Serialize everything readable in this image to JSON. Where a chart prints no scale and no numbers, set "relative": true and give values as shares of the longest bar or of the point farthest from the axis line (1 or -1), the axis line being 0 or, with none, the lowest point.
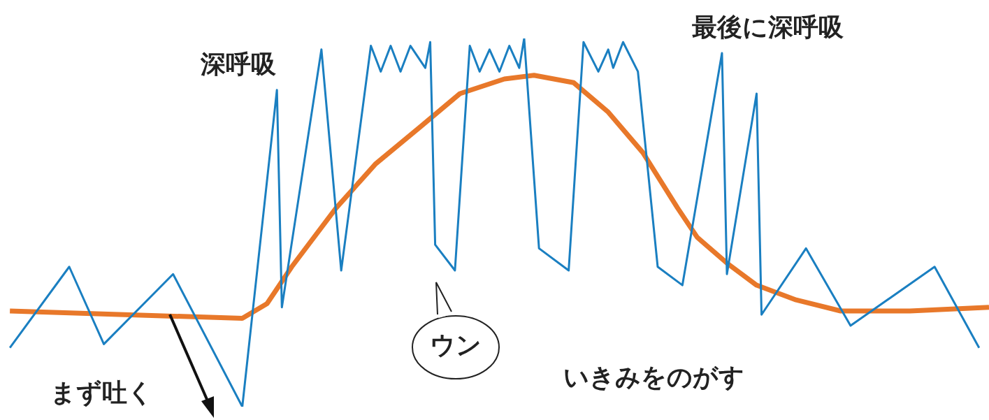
{
  "chart_data": {
    "type": "line",
    "relative": true,
    "categories": [
      null,
      null,
      null,
      null,
      null,
      null,
      null,
      null,
      null,
      null,
      null,
      null,
      null,
      null,
      null,
      null,
      null,
      null,
      null,
      null,
      null,
      null,
      null,
      null,
      null,
      null,
      null,
      null,
      null,
      null,
      null,
      null,
      null,
      null,
      null,
      null,
      null,
      null,
      null,
      null,
      null,
      null,
      null,
      null,
      null,
      null,
      null,
      null,
      null,
      null,
      null,
      null,
      null,
      null,
      null,
      null,
      null,
      null,
      null,
      null,
      null,
      null,
      null,
      null,
      null,
      null,
      null,
      null,
      null,
      null,
      null,
      null,
      null,
      null,
      null,
      null,
      null,
      null,
      null,
      null,
      null,
      null,
      null,
      null,
      null,
      null,
      null,
      null,
      null,
      null,
      null,
      null,
      null,
      null,
      null,
      null,
      null,
      null,
      null,
      null,
      null,
      null,
      null,
      null,
      null,
      null,
      null,
      null,
      null,
      null,
      null,
      null,
      null,
      null,
      null,
      null,
      null,
      null,
      null,
      null,
      null,
      null,
      null,
      null,
      null,
      null,
      null,
      null,
      null,
      null,
      null,
      null,
      null,
      null,
      null,
      null,
      null,
      null,
      null,
      null,
      null,
      null,
      null,
      null,
      null,
      null,
      null,
      null,
      null,
      null,
      null,
      null,
      null,
      null,
      null,
      null,
      null,
      null,
      null,
      null,
      null,
      null,
      null,
      null,
      null,
      null,
      null,
      null,
      null,
      null,
      null,
      null,
      null,
      null,
      null,
      null,
      null,
      null,
      null,
      null,
      null,
      null,
      null,
      null,
      null,
      null,
      null,
      null,
      null,
      null,
      null,
      null,
      null,
      null,
      null,
      null,
      null,
      null,
      null,
      null,
      null
    ],
    "series": [
      {
        "color": "#1a7fc1",
        "values": [
          null,
          null,
          0.16,
          null,
          null,
          null,
          null,
          null,
          null,
          null,
          null,
          null,
          null,
          null,
          0.38,
          null,
          null,
          null,
          null,
          null,
          null,
          0.17,
          null,
          null,
          null,
          null,
          null,
          null,
          null,
          null,
          null,
          null,
          null,
          null,
          null,
          0.36,
          null,
          null,
          null,
          null,
          null,
          null,
          null,
          null,
          null,
          null,
          null,
          null,
          null,
          0,
          null,
          null,
          null,
          null,
          null,
          null,
          0.86,
          0.27,
          null,
          null,
          null,
          null,
          null,
          null,
          null,
          0.97,
          null,
          null,
          null,
          0.37,
          null,
          null,
          null,
          null,
          null,
          0.98,
          null,
          0.91,
          null,
          0.98,
          null,
          0.91,
          null,
          0.98,
          null,
          null,
          0.92,
          0.99,
          0.44,
          null,
          null,
          null,
          0.37,
          null,
          null,
          0.98,
          null,
          0.91,
          null,
          0.97,
          null,
          0.91,
          null,
          0.98,
          null,
          0.92,
          1,
          null,
          null,
          0.43,
          null,
          null,
          null,
          null,
          null,
          0.37,
          null,
          null,
          0.99,
          null,
          null,
          0.91,
          null,
          0.97,
          0.92,
          null,
          0.99,
          null,
          null,
          0.91,
          null,
          null,
          null,
          0.38,
          null,
          null,
          null,
          null,
          0.33,
          null,
          null,
          null,
          null,
          null,
          null,
          null,
          0.96,
          0.36,
          null,
          null,
          null,
          null,
          null,
          0.85,
          0.25,
          null,
          null,
          null,
          null,
          null,
          null,
          null,
          null,
          0.43,
          null,
          null,
          null,
          null,
          null,
          null,
          null,
          null,
          0.22,
          null,
          null,
          null,
          null,
          null,
          null,
          null,
          null,
          null,
          null,
          null,
          null,
          null,
          null,
          null,
          null,
          0.38,
          null,
          null,
          null,
          null,
          null,
          null,
          null,
          null,
          0.16,
          null,
          null
        ]
      },
      {
        "color": "#e8782a",
        "values": [
          null,
          null,
          0.26,
          null,
          null,
          null,
          null,
          null,
          null,
          null,
          null,
          null,
          null,
          null,
          null,
          null,
          null,
          null,
          null,
          null,
          null,
          null,
          null,
          null,
          null,
          null,
          null,
          null,
          null,
          null,
          null,
          null,
          null,
          null,
          null,
          null,
          null,
          null,
          null,
          null,
          null,
          null,
          null,
          null,
          null,
          null,
          null,
          null,
          null,
          0.24,
          null,
          null,
          null,
          null,
          0.28,
          null,
          null,
          null,
          null,
          0.38,
          null,
          null,
          null,
          null,
          null,
          null,
          null,
          null,
          0.54,
          null,
          null,
          null,
          null,
          null,
          null,
          null,
          0.66,
          null,
          null,
          null,
          null,
          null,
          null,
          null,
          null,
          0.76,
          null,
          null,
          null,
          null,
          null,
          null,
          null,
          0.85,
          null,
          null,
          null,
          null,
          null,
          null,
          null,
          null,
          0.89,
          null,
          null,
          null,
          null,
          null,
          0.9,
          null,
          null,
          null,
          null,
          null,
          null,
          null,
          0.88,
          null,
          null,
          null,
          null,
          null,
          null,
          0.8,
          null,
          null,
          null,
          null,
          null,
          null,
          0.69,
          null,
          null,
          null,
          null,
          null,
          null,
          0.54,
          null,
          null,
          null,
          0.46,
          null,
          null,
          null,
          null,
          null,
          0.39,
          null,
          null,
          null,
          null,
          null,
          0.33,
          null,
          null,
          null,
          null,
          null,
          null,
          null,
          0.29,
          null,
          null,
          null,
          null,
          null,
          null,
          null,
          null,
          0.26,
          null,
          null,
          null,
          null,
          null,
          null,
          null,
          null,
          null,
          null,
          null,
          null,
          null,
          0.26,
          null,
          null,
          null,
          null,
          null,
          null,
          null,
          null,
          null,
          null,
          null,
          null,
          null,
          null,
          null,
          0.27
        ]
      }
    ],
    "annotations": [
      "深呼吸",
      "最後に深呼吸",
      "まず吐く",
      "ウン",
      "いきみをのがす"
    ]
  }
}
